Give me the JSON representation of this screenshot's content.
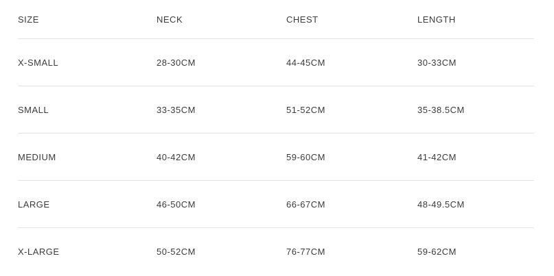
{
  "size_chart": {
    "columns": [
      "SIZE",
      "NECK",
      "CHEST",
      "LENGTH"
    ],
    "rows": [
      {
        "size": "X-SMALL",
        "neck": "28-30CM",
        "chest": "44-45CM",
        "length": "30-33CM"
      },
      {
        "size": "SMALL",
        "neck": "33-35CM",
        "chest": "51-52CM",
        "length": "35-38.5CM"
      },
      {
        "size": "MEDIUM",
        "neck": "40-42CM",
        "chest": "59-60CM",
        "length": "41-42CM"
      },
      {
        "size": "LARGE",
        "neck": "46-50CM",
        "chest": "66-67CM",
        "length": "48-49.5CM"
      },
      {
        "size": "X-LARGE",
        "neck": "50-52CM",
        "chest": "76-77CM",
        "length": "59-62CM"
      }
    ],
    "colors": {
      "text": "#3b3b3b",
      "divider": "#e3e3e3",
      "background": "#ffffff"
    }
  }
}
